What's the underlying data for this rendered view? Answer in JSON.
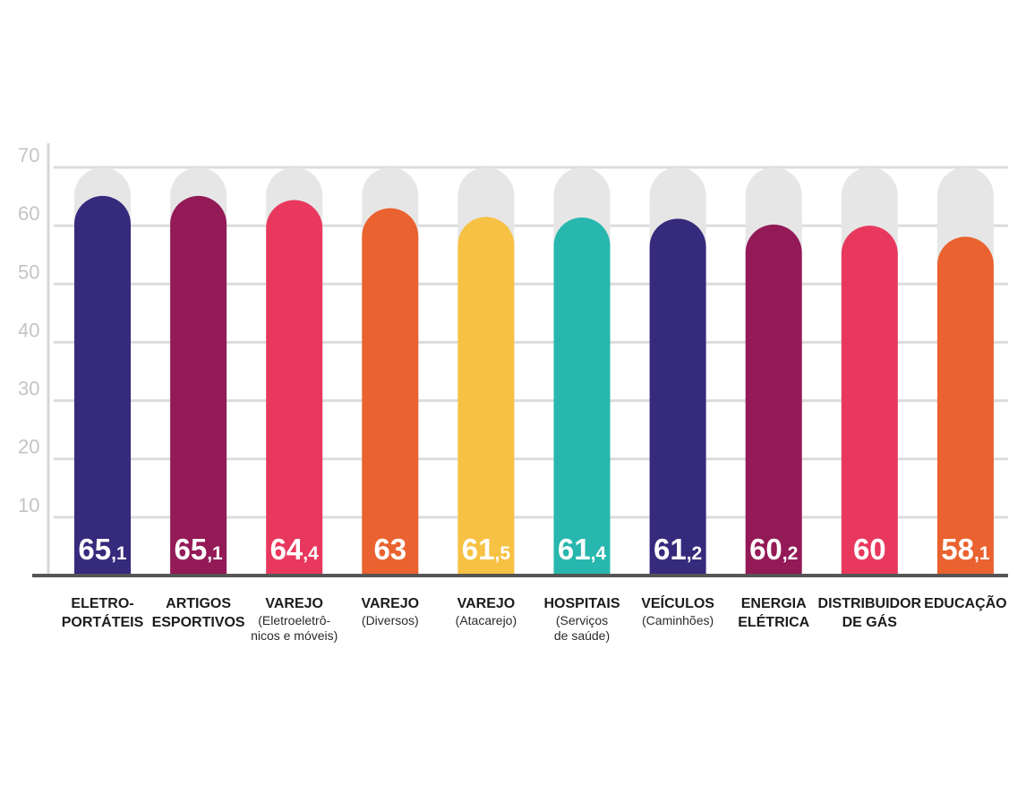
{
  "chart_data": {
    "type": "bar",
    "title": "",
    "xlabel": "",
    "ylabel": "",
    "ylim": [
      0,
      70
    ],
    "yticks": [
      10,
      20,
      30,
      40,
      50,
      60,
      70
    ],
    "grid": true,
    "background_track_value": 70,
    "track_color": "#e6e6e6",
    "categories": [
      {
        "label": [
          "ELETRO-",
          "PORTÁTEIS"
        ],
        "sub": []
      },
      {
        "label": [
          "ARTIGOS",
          "ESPORTIVOS"
        ],
        "sub": []
      },
      {
        "label": [
          "VAREJO"
        ],
        "sub": [
          "(Eletroeletrô-",
          "nicos e móveis)"
        ]
      },
      {
        "label": [
          "VAREJO"
        ],
        "sub": [
          "(Diversos)"
        ]
      },
      {
        "label": [
          "VAREJO"
        ],
        "sub": [
          "(Atacarejo)"
        ]
      },
      {
        "label": [
          "HOSPITAIS"
        ],
        "sub": [
          "(Serviços",
          "de saúde)"
        ]
      },
      {
        "label": [
          "VEÍCULOS"
        ],
        "sub": [
          "(Caminhões)"
        ]
      },
      {
        "label": [
          "ENERGIA",
          "ELÉTRICA"
        ],
        "sub": []
      },
      {
        "label": [
          "DISTRIBUIDOR",
          "DE GÁS"
        ],
        "sub": []
      },
      {
        "label": [
          "EDUCAÇÃO"
        ],
        "sub": []
      }
    ],
    "values": [
      65.1,
      65.1,
      64.4,
      63,
      61.5,
      61.4,
      61.2,
      60.2,
      60,
      58.1
    ],
    "value_labels": [
      {
        "main": "65",
        "dec": ",1"
      },
      {
        "main": "65",
        "dec": ",1"
      },
      {
        "main": "64",
        "dec": ",4"
      },
      {
        "main": "63",
        "dec": ""
      },
      {
        "main": "61",
        "dec": ",5"
      },
      {
        "main": "61",
        "dec": ",4"
      },
      {
        "main": "61",
        "dec": ",2"
      },
      {
        "main": "60",
        "dec": ",2"
      },
      {
        "main": "60",
        "dec": ""
      },
      {
        "main": "58",
        "dec": ",1"
      }
    ],
    "colors": [
      "#352a7c",
      "#931a57",
      "#e8385e",
      "#e9622f",
      "#f7c143",
      "#27b7ae",
      "#352a7c",
      "#931a57",
      "#e8385e",
      "#e9622f"
    ]
  }
}
